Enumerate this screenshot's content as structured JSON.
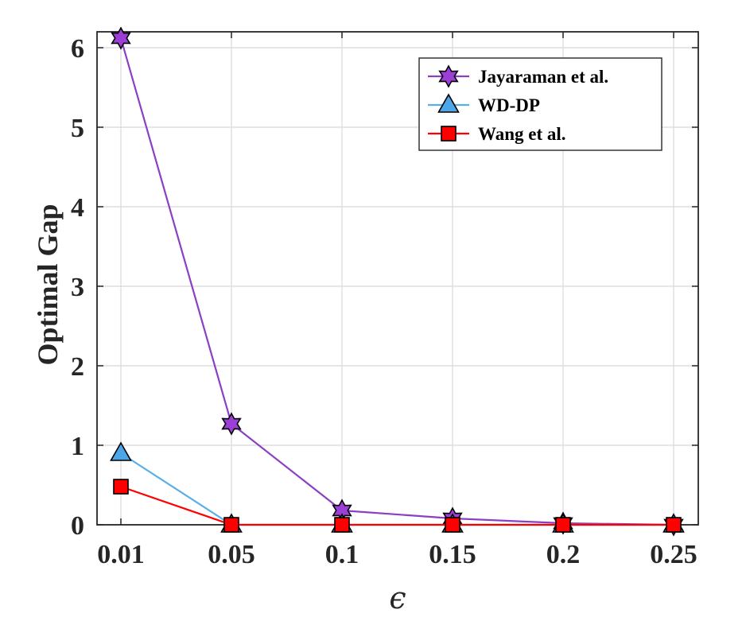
{
  "chart_data": {
    "type": "line",
    "xlabel": "ϵ",
    "ylabel": "Optimal Gap",
    "categories": [
      "0.01",
      "0.05",
      "0.1",
      "0.15",
      "0.2",
      "0.25"
    ],
    "ylim": [
      0,
      6.2
    ],
    "yticks": [
      "0",
      "1",
      "2",
      "3",
      "4",
      "5",
      "6"
    ],
    "grid": true,
    "legend_position": "top-right",
    "series": [
      {
        "name": "Jayaraman et al.",
        "values": [
          6.12,
          1.27,
          0.18,
          0.08,
          0.02,
          0.0
        ],
        "color": "#8b3fc4",
        "marker": "hexagram",
        "marker_fill": "#9b3fd6"
      },
      {
        "name": "WD-DP",
        "values": [
          0.9,
          0.0,
          0.0,
          0.0,
          0.0,
          0.0
        ],
        "color": "#5aaee8",
        "marker": "triangle",
        "marker_fill": "#4da6e8"
      },
      {
        "name": "Wang et al.",
        "values": [
          0.48,
          0.0,
          0.0,
          0.0,
          0.0,
          0.0
        ],
        "color": "#ff0000",
        "marker": "square",
        "marker_fill": "#ff0000"
      }
    ]
  }
}
